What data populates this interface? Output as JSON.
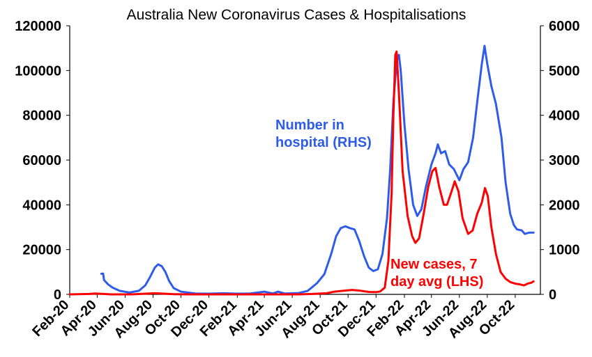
{
  "chart_data": {
    "type": "line",
    "title": "Australia New Coronavirus Cases & Hospitalisations",
    "x_tick_labels": [
      "Feb-20",
      "Apr-20",
      "Jun-20",
      "Aug-20",
      "Oct-20",
      "Dec-20",
      "Feb-21",
      "Apr-21",
      "Jun-21",
      "Aug-21",
      "Oct-21",
      "Dec-21",
      "Feb-22",
      "Apr-22",
      "Jun-22",
      "Aug-22",
      "Oct-22"
    ],
    "x_range": [
      "2020-02-01",
      "2022-11-25"
    ],
    "y_left": {
      "ylim": [
        0,
        120000
      ],
      "ticks": [
        "0",
        "20000",
        "40000",
        "60000",
        "80000",
        "100000",
        "120000"
      ]
    },
    "y_right": {
      "ylim": [
        0,
        6000
      ],
      "ticks": [
        "0",
        "1000",
        "2000",
        "3000",
        "4000",
        "5000",
        "6000"
      ]
    },
    "grid": false,
    "series": [
      {
        "name": "Number in hospital (RHS)",
        "label": [
          "Number in",
          "hospital (RHS)"
        ],
        "axis": "right",
        "color": "#2E5BEA",
        "points": [
          [
            "2020-04-10",
            460
          ],
          [
            "2020-04-14",
            465
          ],
          [
            "2020-04-16",
            320
          ],
          [
            "2020-04-25",
            220
          ],
          [
            "2020-05-05",
            150
          ],
          [
            "2020-05-20",
            80
          ],
          [
            "2020-06-10",
            40
          ],
          [
            "2020-07-01",
            80
          ],
          [
            "2020-07-15",
            200
          ],
          [
            "2020-07-25",
            380
          ],
          [
            "2020-08-05",
            600
          ],
          [
            "2020-08-12",
            670
          ],
          [
            "2020-08-20",
            630
          ],
          [
            "2020-08-28",
            500
          ],
          [
            "2020-09-05",
            300
          ],
          [
            "2020-09-15",
            140
          ],
          [
            "2020-10-01",
            60
          ],
          [
            "2020-11-01",
            20
          ],
          [
            "2020-12-01",
            15
          ],
          [
            "2021-01-01",
            25
          ],
          [
            "2021-02-01",
            15
          ],
          [
            "2021-03-01",
            20
          ],
          [
            "2021-04-01",
            60
          ],
          [
            "2021-04-20",
            20
          ],
          [
            "2021-05-01",
            60
          ],
          [
            "2021-05-15",
            20
          ],
          [
            "2021-06-15",
            30
          ],
          [
            "2021-07-05",
            80
          ],
          [
            "2021-07-25",
            250
          ],
          [
            "2021-08-10",
            450
          ],
          [
            "2021-08-25",
            900
          ],
          [
            "2021-09-05",
            1300
          ],
          [
            "2021-09-15",
            1480
          ],
          [
            "2021-09-25",
            1520
          ],
          [
            "2021-10-05",
            1480
          ],
          [
            "2021-10-15",
            1450
          ],
          [
            "2021-10-25",
            1200
          ],
          [
            "2021-11-05",
            850
          ],
          [
            "2021-11-15",
            600
          ],
          [
            "2021-11-25",
            520
          ],
          [
            "2021-12-05",
            560
          ],
          [
            "2021-12-15",
            900
          ],
          [
            "2021-12-25",
            1700
          ],
          [
            "2022-01-01",
            2800
          ],
          [
            "2022-01-08",
            4300
          ],
          [
            "2022-01-15",
            5200
          ],
          [
            "2022-01-20",
            5350
          ],
          [
            "2022-01-24",
            5000
          ],
          [
            "2022-02-01",
            3800
          ],
          [
            "2022-02-10",
            2800
          ],
          [
            "2022-02-20",
            2000
          ],
          [
            "2022-03-01",
            1750
          ],
          [
            "2022-03-10",
            1900
          ],
          [
            "2022-03-20",
            2400
          ],
          [
            "2022-04-01",
            2900
          ],
          [
            "2022-04-10",
            3150
          ],
          [
            "2022-04-15",
            3350
          ],
          [
            "2022-04-22",
            3150
          ],
          [
            "2022-05-01",
            3200
          ],
          [
            "2022-05-10",
            2900
          ],
          [
            "2022-05-20",
            2800
          ],
          [
            "2022-06-01",
            2550
          ],
          [
            "2022-06-10",
            2800
          ],
          [
            "2022-06-20",
            2950
          ],
          [
            "2022-07-01",
            3500
          ],
          [
            "2022-07-10",
            4300
          ],
          [
            "2022-07-20",
            5150
          ],
          [
            "2022-07-26",
            5550
          ],
          [
            "2022-08-01",
            5150
          ],
          [
            "2022-08-10",
            4650
          ],
          [
            "2022-08-20",
            4250
          ],
          [
            "2022-09-01",
            3500
          ],
          [
            "2022-09-10",
            2500
          ],
          [
            "2022-09-20",
            1800
          ],
          [
            "2022-09-28",
            1550
          ],
          [
            "2022-10-05",
            1450
          ],
          [
            "2022-10-15",
            1430
          ],
          [
            "2022-10-22",
            1350
          ],
          [
            "2022-11-01",
            1380
          ],
          [
            "2022-11-10",
            1380
          ]
        ]
      },
      {
        "name": "New cases, 7 day avg (LHS)",
        "label": [
          "New cases, 7",
          "day avg (LHS)"
        ],
        "axis": "left",
        "color": "#FF0000",
        "points": [
          [
            "2020-02-01",
            0
          ],
          [
            "2020-03-15",
            200
          ],
          [
            "2020-03-28",
            400
          ],
          [
            "2020-04-15",
            200
          ],
          [
            "2020-05-01",
            0
          ],
          [
            "2020-06-15",
            0
          ],
          [
            "2020-07-15",
            300
          ],
          [
            "2020-08-05",
            500
          ],
          [
            "2020-08-25",
            300
          ],
          [
            "2020-09-15",
            100
          ],
          [
            "2020-10-15",
            0
          ],
          [
            "2021-06-15",
            0
          ],
          [
            "2021-07-15",
            200
          ],
          [
            "2021-08-15",
            500
          ],
          [
            "2021-09-01",
            1200
          ],
          [
            "2021-09-20",
            1600
          ],
          [
            "2021-10-10",
            2000
          ],
          [
            "2021-10-25",
            1700
          ],
          [
            "2021-11-15",
            1100
          ],
          [
            "2021-12-01",
            1000
          ],
          [
            "2021-12-10",
            1300
          ],
          [
            "2021-12-20",
            3000
          ],
          [
            "2021-12-28",
            15000
          ],
          [
            "2022-01-04",
            45000
          ],
          [
            "2022-01-08",
            80000
          ],
          [
            "2022-01-12",
            107000
          ],
          [
            "2022-01-15",
            108500
          ],
          [
            "2022-01-20",
            90000
          ],
          [
            "2022-01-28",
            55000
          ],
          [
            "2022-02-08",
            35000
          ],
          [
            "2022-02-18",
            26000
          ],
          [
            "2022-02-25",
            23000
          ],
          [
            "2022-03-05",
            25000
          ],
          [
            "2022-03-15",
            36000
          ],
          [
            "2022-03-25",
            48000
          ],
          [
            "2022-04-03",
            55000
          ],
          [
            "2022-04-10",
            56500
          ],
          [
            "2022-04-18",
            48000
          ],
          [
            "2022-04-28",
            40000
          ],
          [
            "2022-05-05",
            40000
          ],
          [
            "2022-05-15",
            46000
          ],
          [
            "2022-05-22",
            50500
          ],
          [
            "2022-05-30",
            46000
          ],
          [
            "2022-06-08",
            34000
          ],
          [
            "2022-06-20",
            27000
          ],
          [
            "2022-06-30",
            28500
          ],
          [
            "2022-07-10",
            36000
          ],
          [
            "2022-07-20",
            41000
          ],
          [
            "2022-07-27",
            47500
          ],
          [
            "2022-08-02",
            44000
          ],
          [
            "2022-08-10",
            30000
          ],
          [
            "2022-08-20",
            18000
          ],
          [
            "2022-08-30",
            10000
          ],
          [
            "2022-09-10",
            7000
          ],
          [
            "2022-09-20",
            5500
          ],
          [
            "2022-10-01",
            4800
          ],
          [
            "2022-10-10",
            4500
          ],
          [
            "2022-10-20",
            4000
          ],
          [
            "2022-10-28",
            4800
          ],
          [
            "2022-11-05",
            5200
          ],
          [
            "2022-11-10",
            5800
          ]
        ]
      }
    ]
  }
}
